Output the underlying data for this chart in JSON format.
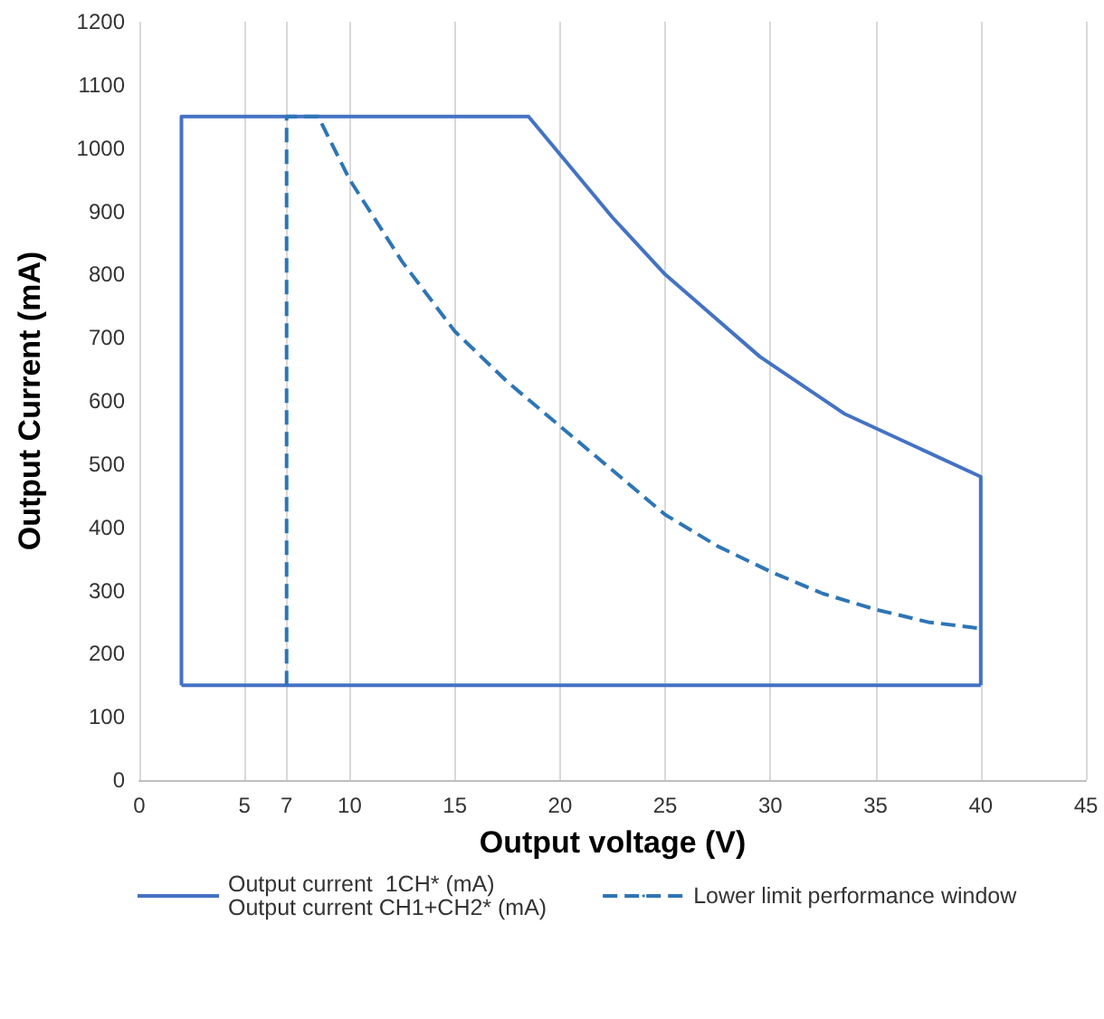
{
  "chart_data": {
    "type": "line",
    "xlabel": "Output voltage (V)",
    "ylabel": "Output Current (mA)",
    "xlim": [
      0,
      45
    ],
    "xticks": [
      0,
      5,
      7,
      10,
      15,
      20,
      25,
      30,
      35,
      40,
      45
    ],
    "ylim": [
      0,
      1200
    ],
    "yticks": [
      0,
      100,
      200,
      300,
      400,
      500,
      600,
      700,
      800,
      900,
      1000,
      1100,
      1200
    ],
    "grid": "x",
    "legend": "bottom",
    "marker": "none",
    "series": [
      {
        "name": "Output current  1CH* (mA)\nOutput current CH1+CH2* (mA)",
        "color": "#4472c4",
        "line_style": "solid",
        "x": [
          2,
          2,
          18.5,
          22.5,
          25,
          29.5,
          33.5,
          40,
          40
        ],
        "values": [
          150,
          1050,
          1050,
          890,
          800,
          670,
          580,
          480,
          150
        ]
      },
      {
        "color": "#4472c4",
        "line_style": "solid",
        "x": [
          2,
          40
        ],
        "values": [
          150,
          150
        ]
      },
      {
        "name": "Lower limit performance window",
        "color": "#2e75b6",
        "line_style": "dashed",
        "x": [
          7,
          7,
          8.5,
          10,
          12.5,
          15,
          17.5,
          20,
          22.5,
          25,
          27.5,
          30,
          32.5,
          35,
          37.5,
          40
        ],
        "values": [
          150,
          1050,
          1050,
          950,
          820,
          710,
          630,
          560,
          490,
          420,
          370,
          330,
          295,
          270,
          250,
          240
        ]
      }
    ]
  }
}
